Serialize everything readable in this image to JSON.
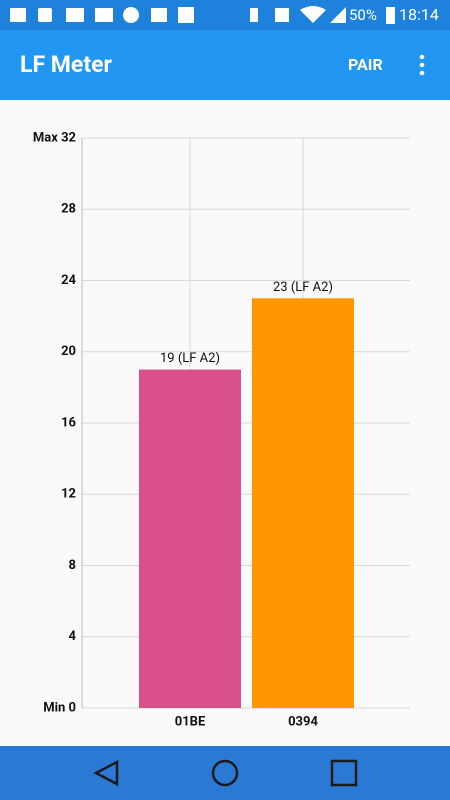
{
  "status_bar": {
    "battery": "50%",
    "time": "18:14"
  },
  "app_bar": {
    "title": "LF Meter",
    "action": "PAIR"
  },
  "chart_data": {
    "type": "bar",
    "categories": [
      "01BE",
      "0394"
    ],
    "values": [
      19,
      23
    ],
    "value_labels": [
      "19 (LF A2)",
      "23 (LF A2)"
    ],
    "colors": [
      "#d9508b",
      "#ff9800"
    ],
    "ylim": [
      0,
      32
    ],
    "yticks": [
      {
        "value": 0,
        "label": "Min 0"
      },
      4,
      8,
      12,
      16,
      20,
      24,
      28,
      {
        "value": 32,
        "label": "Max 32"
      }
    ],
    "grid": true
  }
}
